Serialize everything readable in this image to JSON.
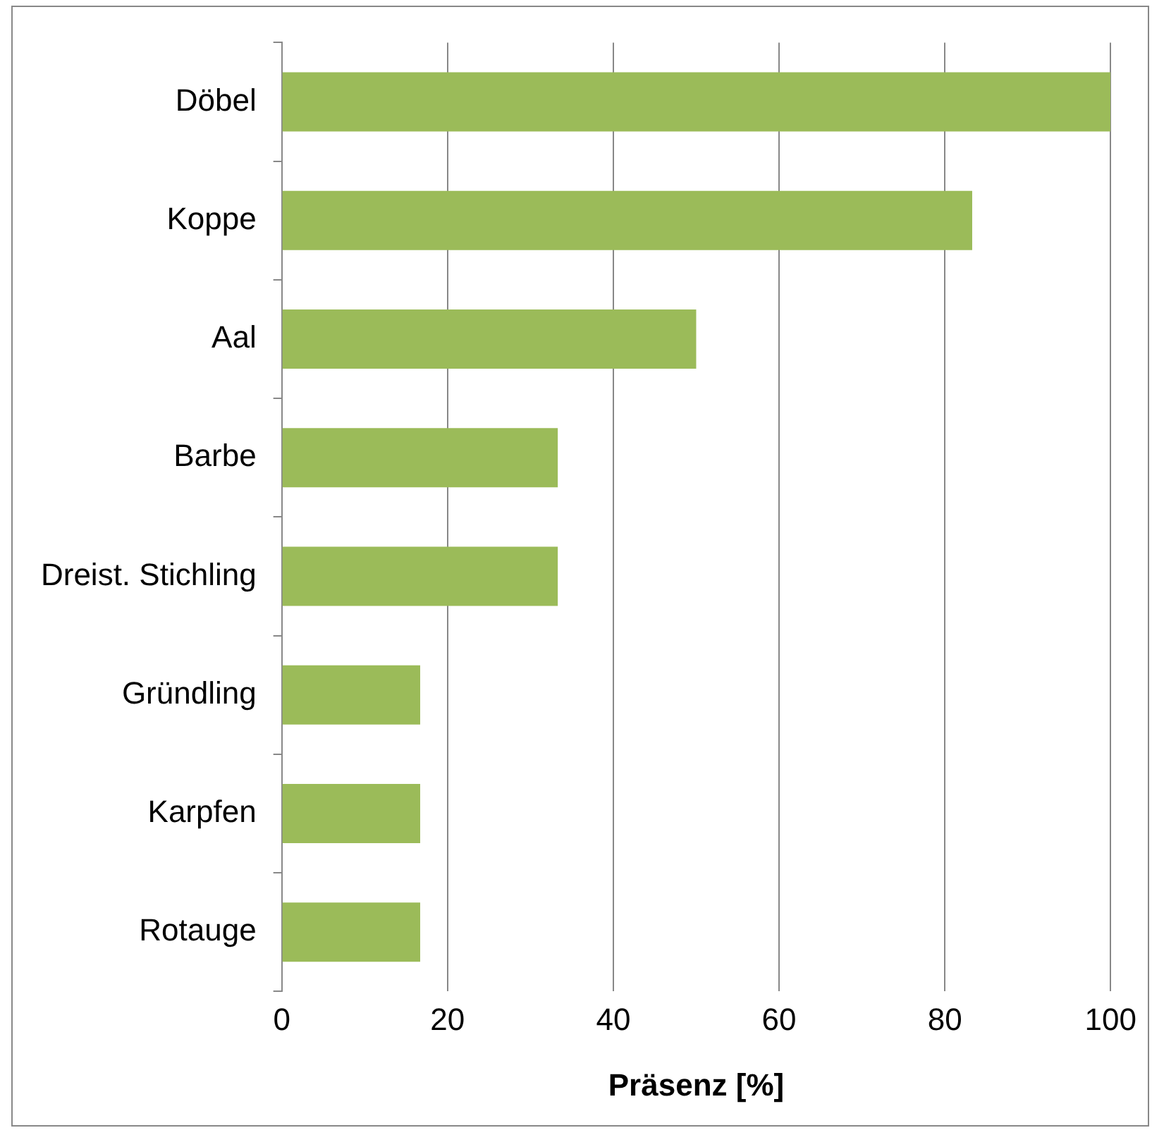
{
  "chart_data": {
    "type": "bar",
    "orientation": "horizontal",
    "xlabel": "Präsenz [%]",
    "categories": [
      "Döbel",
      "Koppe",
      "Aal",
      "Barbe",
      "Dreist. Stichling",
      "Gründling",
      "Karpfen",
      "Rotauge"
    ],
    "values": [
      100,
      83.3,
      50,
      33.3,
      33.3,
      16.7,
      16.7,
      16.7
    ],
    "color": "#9bbb59",
    "xlim": [
      0,
      100
    ],
    "xticks": [
      0,
      20,
      40,
      60,
      80,
      100
    ],
    "grid": "x",
    "legend": false
  }
}
